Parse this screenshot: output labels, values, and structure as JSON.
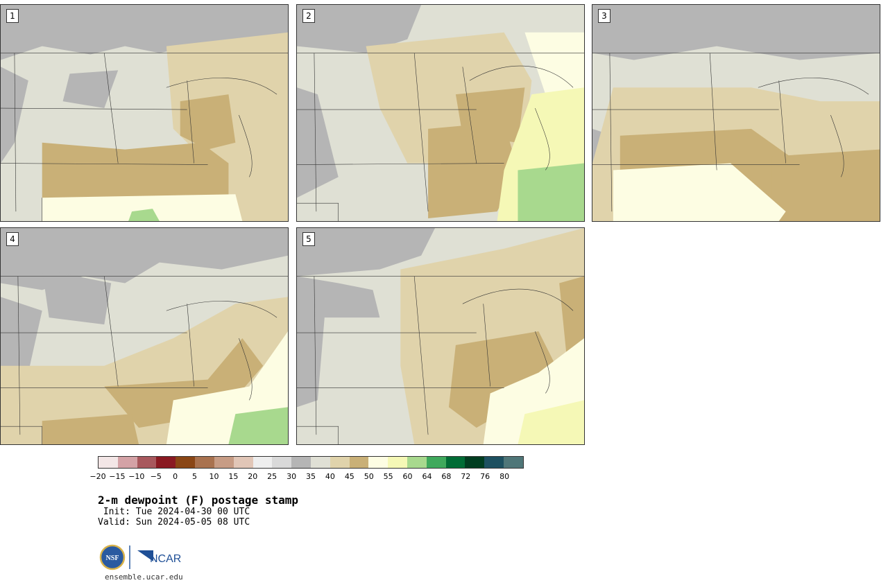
{
  "panels": [
    {
      "label": "1"
    },
    {
      "label": "2"
    },
    {
      "label": "3"
    },
    {
      "label": "4"
    },
    {
      "label": "5"
    }
  ],
  "colorbar": {
    "colors": [
      "#f3e6e6",
      "#d4a2a6",
      "#a8585d",
      "#8a1a22",
      "#8a4615",
      "#a9724f",
      "#c79c85",
      "#e1c6b7",
      "#eeeeee",
      "#d9d9d9",
      "#b5b5b5",
      "#e0e0d5",
      "#e0d3ab",
      "#c9b077",
      "#fdfde3",
      "#f5f8b6",
      "#a8d98e",
      "#3fa95c",
      "#006c35",
      "#003d20",
      "#1d5060",
      "#4f7678"
    ],
    "ticks": [
      "−20",
      "−15",
      "−10",
      "−5",
      "0",
      "5",
      "10",
      "15",
      "20",
      "25",
      "30",
      "35",
      "40",
      "45",
      "50",
      "55",
      "60",
      "64",
      "68",
      "72",
      "76",
      "80"
    ]
  },
  "title": "2-m dewpoint (F) postage stamp",
  "init": " Init: Tue 2024-04-30 00 UTC",
  "valid": "Valid: Sun 2024-05-05 08 UTC",
  "logos": {
    "nsf": "NSF",
    "ncar": "NCAR"
  },
  "site": "ensemble.ucar.edu"
}
